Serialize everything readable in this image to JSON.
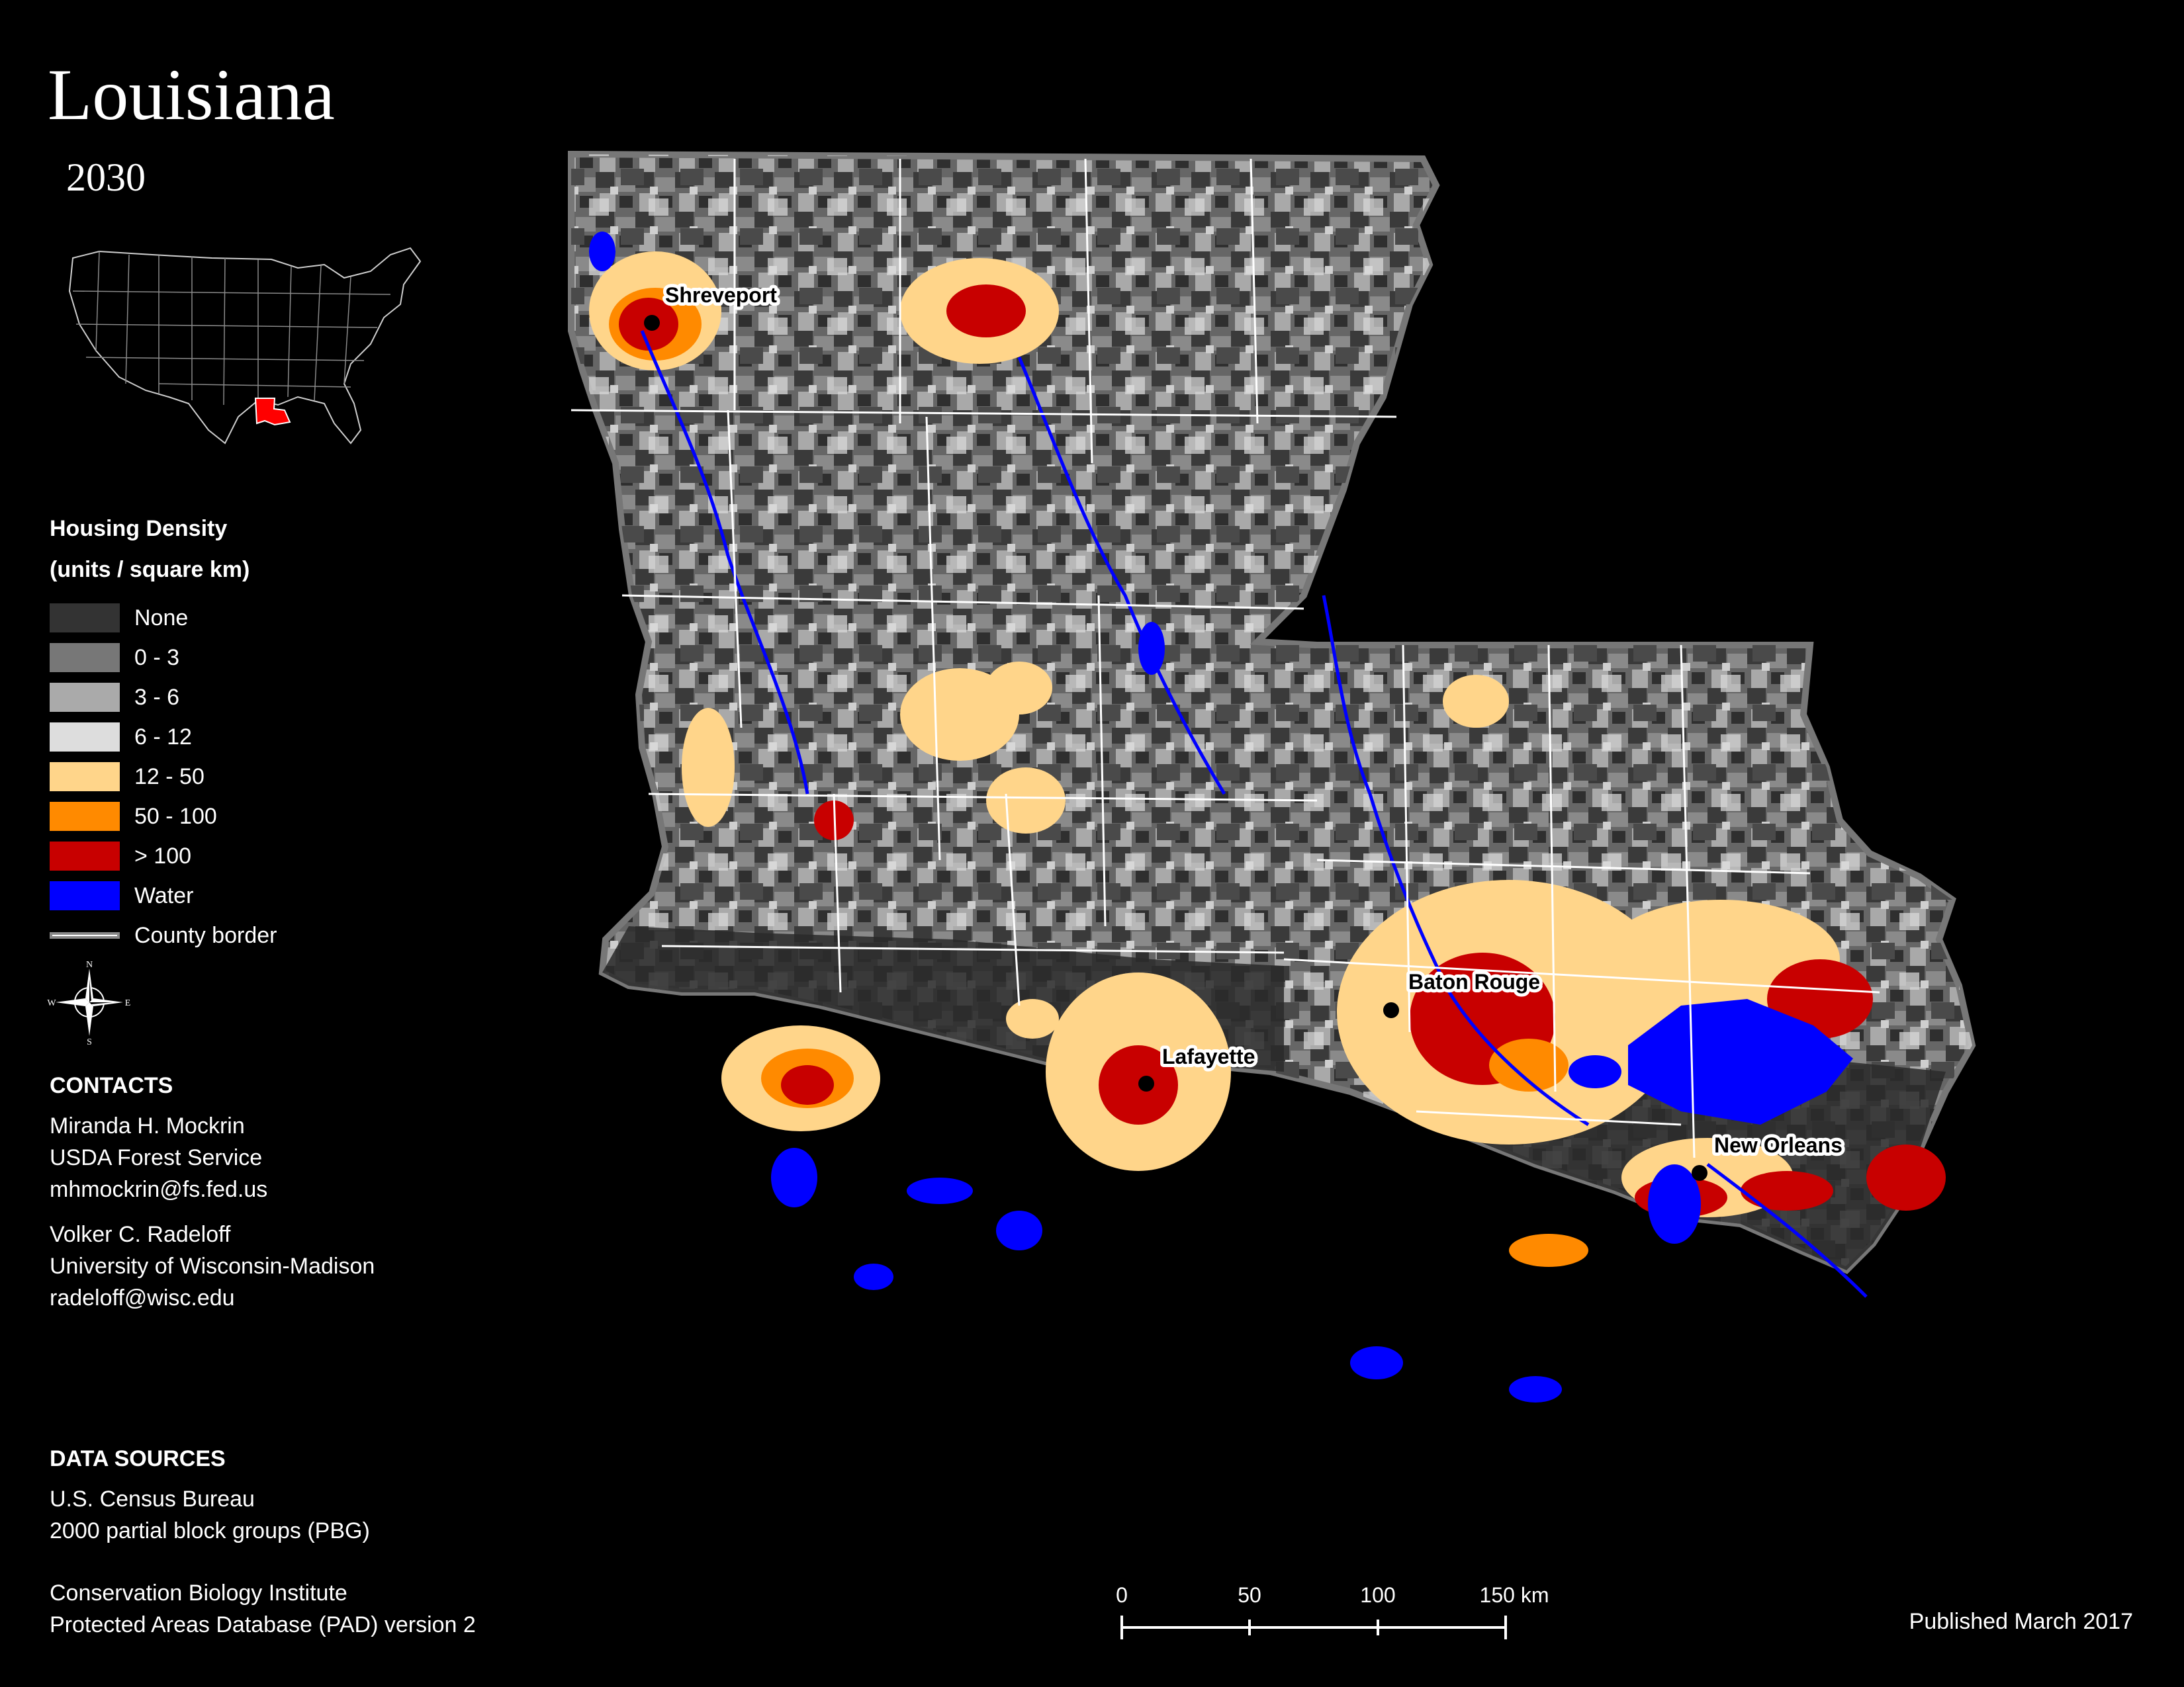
{
  "title": "Louisiana",
  "subtitle": "2030",
  "legend": {
    "title_line1": "Housing Density",
    "title_line2": "(units / square km)",
    "items": [
      {
        "label": "None",
        "color": "#333333"
      },
      {
        "label": "0 - 3",
        "color": "#777777"
      },
      {
        "label": "3 - 6",
        "color": "#aaaaaa"
      },
      {
        "label": "6 - 12",
        "color": "#dddddd"
      },
      {
        "label": "12 - 50",
        "color": "#ffd58a"
      },
      {
        "label": "50 - 100",
        "color": "#ff8a00"
      },
      {
        "label": "> 100",
        "color": "#c80000"
      },
      {
        "label": "Water",
        "color": "#0000ff"
      }
    ],
    "border_label": "County border"
  },
  "compass": {
    "n": "N",
    "s": "S",
    "e": "E",
    "w": "W"
  },
  "contacts": {
    "heading": "CONTACTS",
    "people": [
      {
        "name": "Miranda H. Mockrin",
        "org": "USDA Forest Service",
        "email": "mhmockrin@fs.fed.us"
      },
      {
        "name": "Volker C. Radeloff",
        "org": "University of Wisconsin-Madison",
        "email": "radeloff@wisc.edu"
      }
    ]
  },
  "data_sources": {
    "heading": "DATA SOURCES",
    "lines": [
      "U.S. Census Bureau",
      "2000 partial block groups (PBG)",
      "Conservation Biology Institute",
      "Protected Areas Database (PAD) version 2"
    ]
  },
  "cities": [
    {
      "name": "Shreveport"
    },
    {
      "name": "Baton Rouge"
    },
    {
      "name": "Lafayette"
    },
    {
      "name": "New Orleans"
    }
  ],
  "scale": {
    "ticks": [
      "0",
      "50",
      "100",
      "150 km"
    ]
  },
  "published": "Published March 2017",
  "colors": {
    "background": "#000000",
    "highlight_state": "#ff0000",
    "county_border": "#ffffff"
  }
}
